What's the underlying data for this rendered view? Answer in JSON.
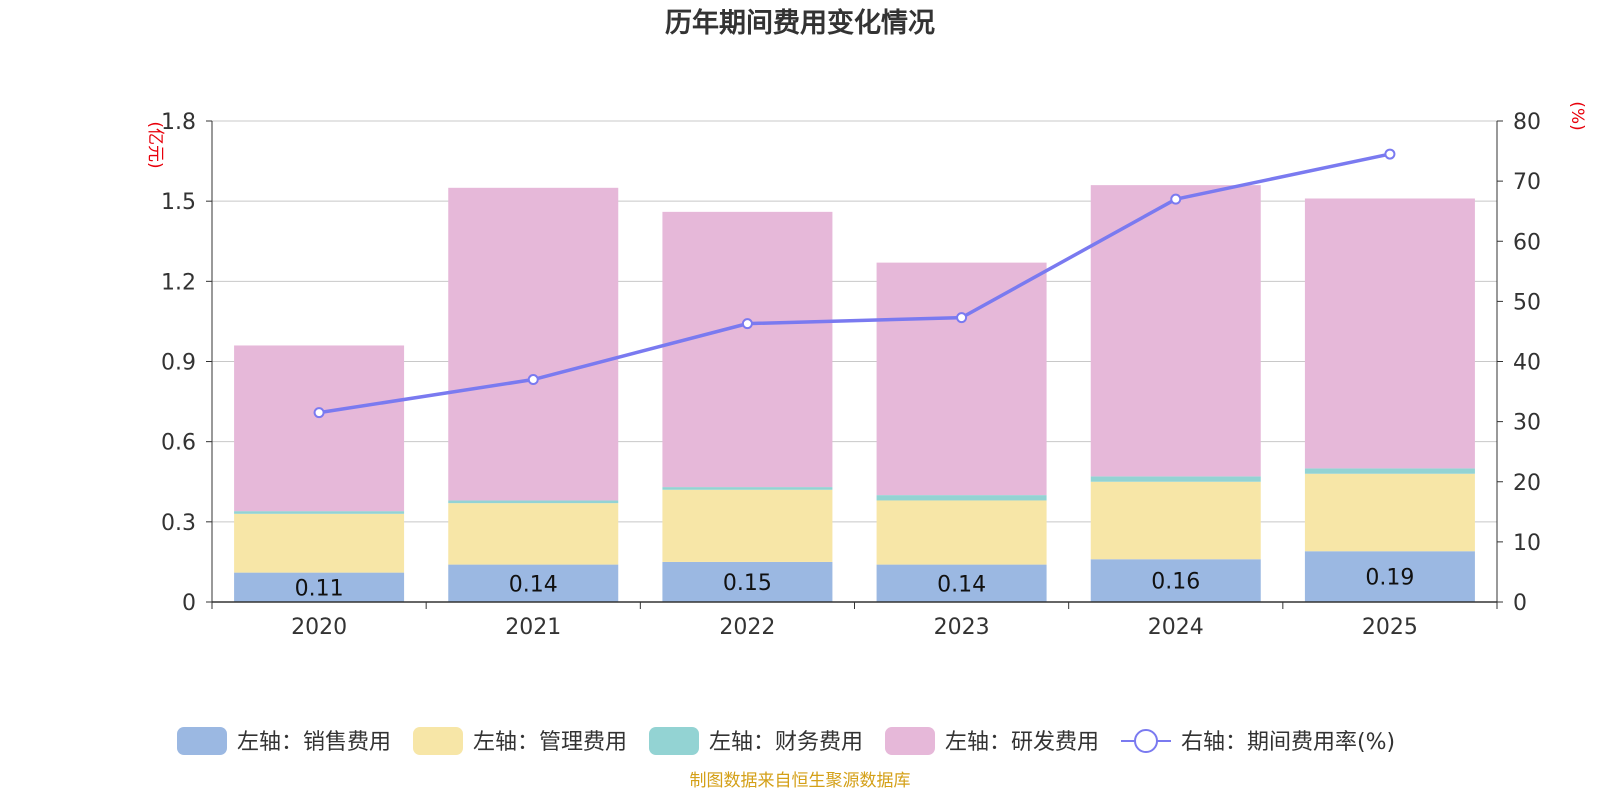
{
  "chart_data": {
    "type": "bar",
    "title": "历年期间费用变化情况",
    "categories": [
      "2020",
      "2021",
      "2022",
      "2023",
      "2024",
      "2025"
    ],
    "y_left": {
      "unit": "(亿元)",
      "ylim": [
        0,
        1.8
      ],
      "ticks": [
        "0",
        "0.3",
        "0.6",
        "0.9",
        "1.2",
        "1.5",
        "1.8"
      ]
    },
    "y_right": {
      "unit": "(%)",
      "ylim": [
        0,
        80
      ],
      "ticks": [
        "0",
        "10",
        "20",
        "30",
        "40",
        "50",
        "60",
        "70",
        "80"
      ]
    },
    "series": [
      {
        "name": "左轴：销售费用",
        "type": "bar",
        "axis": "left",
        "color": "#9bb8e2",
        "values": [
          0.11,
          0.14,
          0.15,
          0.14,
          0.16,
          0.19
        ],
        "labels": [
          "0.11",
          "0.14",
          "0.15",
          "0.14",
          "0.16",
          "0.19"
        ]
      },
      {
        "name": "左轴：管理费用",
        "type": "bar",
        "axis": "left",
        "color": "#f7e6a7",
        "values": [
          0.22,
          0.23,
          0.27,
          0.24,
          0.29,
          0.29
        ]
      },
      {
        "name": "左轴：财务费用",
        "type": "bar",
        "axis": "left",
        "color": "#93d3d3",
        "values": [
          0.01,
          0.01,
          0.01,
          0.02,
          0.02,
          0.02
        ]
      },
      {
        "name": "左轴：研发费用",
        "type": "bar",
        "axis": "left",
        "color": "#e6b8d9",
        "values": [
          0.62,
          1.17,
          1.03,
          0.87,
          1.09,
          1.01
        ]
      },
      {
        "name": "右轴：期间费用率(%)",
        "type": "line",
        "axis": "right",
        "color": "#7a7af0",
        "values": [
          31.5,
          37,
          46.3,
          47.3,
          67,
          74.5
        ]
      }
    ],
    "legend_position": "bottom",
    "source": "制图数据来自恒生聚源数据库"
  }
}
